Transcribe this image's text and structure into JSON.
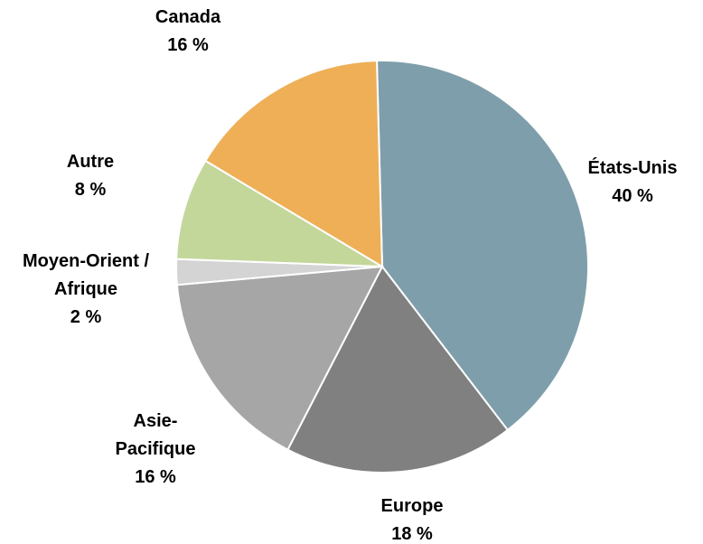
{
  "chart_data": {
    "type": "pie",
    "categories": [
      "États-Unis",
      "Europe",
      "Asie-Pacifique",
      "Moyen-Orient / Afrique",
      "Autre",
      "Canada"
    ],
    "values": [
      40,
      18,
      16,
      2,
      8,
      16
    ],
    "value_labels": [
      "40 %",
      "18 %",
      "16 %",
      "2 %",
      "8 %",
      "16 %"
    ],
    "colors": [
      "#7f9eab",
      "#808080",
      "#a6a6a6",
      "#d4d4d4",
      "#c4d79b",
      "#eeaf57"
    ]
  }
}
